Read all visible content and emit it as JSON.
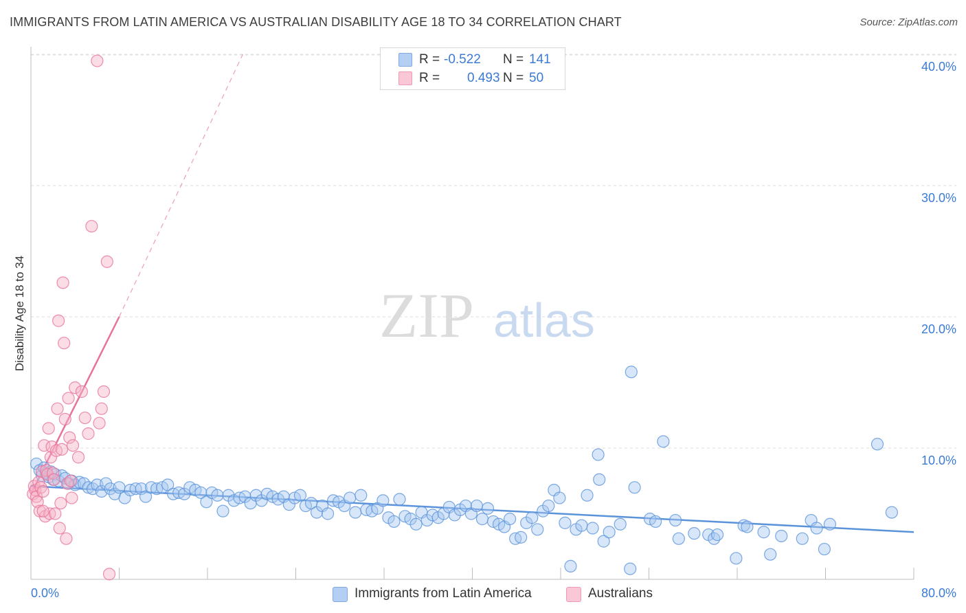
{
  "header": {
    "title": "IMMIGRANTS FROM LATIN AMERICA VS AUSTRALIAN DISABILITY AGE 18 TO 34 CORRELATION CHART",
    "source": "Source: ZipAtlas.com"
  },
  "watermark": {
    "zip": "ZIP",
    "atlas": "atlas"
  },
  "legend": {
    "r_label": "R =",
    "n_label": "N =",
    "rows": [
      {
        "r": "-0.522",
        "n": "141",
        "color": "#9dc1ee"
      },
      {
        "r": "0.493",
        "n": "50",
        "color": "#f6b3c6"
      }
    ]
  },
  "bottom_legend": [
    {
      "label": "Immigrants from Latin America",
      "color": "#9dc1ee"
    },
    {
      "label": "Australians",
      "color": "#f6b3c6"
    }
  ],
  "chart_data": {
    "type": "scatter",
    "title": "IMMIGRANTS FROM LATIN AMERICA VS AUSTRALIAN DISABILITY AGE 18 TO 34 CORRELATION CHART",
    "xlabel": "",
    "ylabel": "Disability Age 18 to 34",
    "xlim": [
      0,
      80
    ],
    "ylim": [
      0,
      41.5
    ],
    "x_tick_labels": [
      "0.0%",
      "80.0%"
    ],
    "y_ticks": [
      10,
      20,
      30,
      40
    ],
    "y_tick_labels": [
      "10.0%",
      "20.0%",
      "30.0%",
      "40.0%"
    ],
    "grid": true,
    "legend_position": "top-center",
    "series": [
      {
        "name": "Immigrants from Latin America",
        "color": "#5b93db",
        "fill": "#a7c7ef",
        "trend": {
          "x": [
            0,
            80
          ],
          "y": [
            7.1,
            3.6
          ],
          "dashed_extension": false
        },
        "points": [
          [
            0.5,
            8.8
          ],
          [
            0.8,
            8.3
          ],
          [
            1.0,
            7.9
          ],
          [
            1.2,
            8.5
          ],
          [
            1.4,
            8.1
          ],
          [
            1.6,
            7.8
          ],
          [
            1.8,
            8.2
          ],
          [
            2.0,
            7.6
          ],
          [
            2.2,
            8.0
          ],
          [
            2.5,
            7.5
          ],
          [
            2.8,
            7.9
          ],
          [
            3.1,
            7.7
          ],
          [
            3.4,
            7.3
          ],
          [
            3.7,
            7.5
          ],
          [
            4.0,
            7.2
          ],
          [
            4.4,
            7.4
          ],
          [
            4.8,
            7.3
          ],
          [
            5.2,
            7.0
          ],
          [
            5.6,
            6.9
          ],
          [
            6.0,
            7.2
          ],
          [
            6.4,
            6.7
          ],
          [
            6.8,
            7.3
          ],
          [
            7.2,
            6.9
          ],
          [
            7.6,
            6.5
          ],
          [
            8.0,
            7.0
          ],
          [
            8.5,
            6.2
          ],
          [
            9.0,
            6.8
          ],
          [
            9.5,
            6.9
          ],
          [
            10.0,
            6.9
          ],
          [
            10.4,
            6.3
          ],
          [
            10.9,
            7.0
          ],
          [
            11.4,
            6.9
          ],
          [
            11.9,
            7.0
          ],
          [
            12.4,
            7.2
          ],
          [
            12.9,
            6.5
          ],
          [
            13.4,
            6.6
          ],
          [
            13.9,
            6.5
          ],
          [
            14.4,
            7.0
          ],
          [
            14.9,
            6.8
          ],
          [
            15.4,
            6.6
          ],
          [
            15.9,
            5.9
          ],
          [
            16.4,
            6.6
          ],
          [
            16.9,
            6.4
          ],
          [
            17.4,
            5.2
          ],
          [
            17.9,
            6.4
          ],
          [
            18.4,
            6.0
          ],
          [
            18.9,
            6.2
          ],
          [
            19.4,
            6.3
          ],
          [
            19.9,
            5.8
          ],
          [
            20.4,
            6.4
          ],
          [
            20.9,
            6.0
          ],
          [
            21.4,
            6.5
          ],
          [
            21.9,
            6.3
          ],
          [
            22.4,
            6.1
          ],
          [
            22.9,
            6.3
          ],
          [
            23.4,
            5.7
          ],
          [
            23.9,
            6.2
          ],
          [
            24.4,
            6.4
          ],
          [
            24.9,
            5.6
          ],
          [
            25.4,
            5.8
          ],
          [
            25.9,
            5.1
          ],
          [
            26.4,
            5.6
          ],
          [
            26.9,
            5.0
          ],
          [
            27.4,
            6.0
          ],
          [
            27.9,
            5.9
          ],
          [
            28.4,
            5.6
          ],
          [
            28.9,
            6.2
          ],
          [
            29.4,
            5.1
          ],
          [
            29.9,
            6.4
          ],
          [
            30.4,
            5.3
          ],
          [
            30.9,
            5.2
          ],
          [
            31.4,
            5.4
          ],
          [
            31.9,
            6.0
          ],
          [
            32.4,
            4.7
          ],
          [
            32.9,
            4.4
          ],
          [
            33.4,
            6.1
          ],
          [
            33.9,
            4.8
          ],
          [
            34.4,
            4.6
          ],
          [
            34.9,
            4.2
          ],
          [
            35.4,
            5.1
          ],
          [
            35.9,
            4.5
          ],
          [
            36.4,
            4.9
          ],
          [
            36.9,
            4.7
          ],
          [
            37.4,
            5.0
          ],
          [
            37.9,
            5.5
          ],
          [
            38.4,
            4.9
          ],
          [
            38.9,
            5.3
          ],
          [
            39.4,
            5.6
          ],
          [
            39.9,
            5.0
          ],
          [
            40.4,
            5.6
          ],
          [
            40.9,
            4.6
          ],
          [
            41.4,
            5.4
          ],
          [
            41.9,
            4.4
          ],
          [
            42.4,
            4.2
          ],
          [
            42.9,
            4.0
          ],
          [
            43.4,
            4.6
          ],
          [
            43.9,
            3.1
          ],
          [
            44.4,
            3.2
          ],
          [
            44.9,
            4.3
          ],
          [
            45.4,
            4.7
          ],
          [
            45.9,
            3.8
          ],
          [
            46.4,
            5.2
          ],
          [
            46.9,
            5.6
          ],
          [
            47.4,
            6.8
          ],
          [
            47.9,
            6.2
          ],
          [
            48.4,
            4.3
          ],
          [
            48.9,
            1.0
          ],
          [
            49.4,
            3.8
          ],
          [
            49.9,
            4.1
          ],
          [
            50.4,
            6.4
          ],
          [
            50.9,
            3.9
          ],
          [
            51.4,
            9.5
          ],
          [
            51.5,
            7.6
          ],
          [
            51.9,
            2.9
          ],
          [
            52.4,
            3.6
          ],
          [
            53.4,
            4.2
          ],
          [
            54.3,
            0.8
          ],
          [
            54.4,
            15.8
          ],
          [
            54.7,
            7.0
          ],
          [
            56.1,
            4.6
          ],
          [
            56.6,
            4.4
          ],
          [
            57.3,
            10.5
          ],
          [
            58.4,
            4.5
          ],
          [
            58.7,
            3.1
          ],
          [
            60.1,
            3.5
          ],
          [
            61.4,
            3.4
          ],
          [
            61.9,
            3.1
          ],
          [
            62.2,
            3.4
          ],
          [
            63.9,
            1.6
          ],
          [
            64.6,
            4.1
          ],
          [
            64.9,
            4.0
          ],
          [
            66.4,
            3.6
          ],
          [
            67.0,
            1.9
          ],
          [
            68.0,
            3.3
          ],
          [
            69.9,
            3.1
          ],
          [
            70.7,
            4.5
          ],
          [
            71.2,
            3.9
          ],
          [
            71.9,
            2.3
          ],
          [
            72.4,
            4.2
          ],
          [
            76.7,
            10.3
          ],
          [
            78.0,
            5.1
          ]
        ]
      },
      {
        "name": "Australians",
        "color": "#e7729c",
        "fill": "#f6b3c6",
        "trend": {
          "x": [
            0,
            8
          ],
          "y": [
            6.5,
            20.0
          ],
          "dashed_extension": true,
          "extension_to": [
            19.2,
            40.0
          ]
        },
        "points": [
          [
            0.2,
            6.5
          ],
          [
            0.3,
            7.1
          ],
          [
            0.4,
            6.8
          ],
          [
            0.5,
            6.3
          ],
          [
            0.6,
            5.9
          ],
          [
            0.7,
            7.4
          ],
          [
            0.8,
            5.2
          ],
          [
            0.9,
            7.0
          ],
          [
            1.0,
            8.2
          ],
          [
            1.1,
            6.7
          ],
          [
            1.2,
            10.2
          ],
          [
            1.3,
            4.8
          ],
          [
            1.4,
            8.3
          ],
          [
            1.5,
            8.0
          ],
          [
            1.6,
            11.5
          ],
          [
            1.7,
            5.0
          ],
          [
            1.8,
            9.3
          ],
          [
            1.9,
            10.1
          ],
          [
            2.0,
            8.1
          ],
          [
            2.1,
            7.6
          ],
          [
            2.2,
            5.0
          ],
          [
            2.3,
            9.8
          ],
          [
            2.4,
            13.0
          ],
          [
            2.5,
            19.7
          ],
          [
            2.6,
            3.9
          ],
          [
            2.7,
            5.8
          ],
          [
            2.8,
            9.9
          ],
          [
            2.9,
            22.6
          ],
          [
            3.0,
            18.0
          ],
          [
            3.1,
            12.2
          ],
          [
            3.2,
            3.1
          ],
          [
            3.3,
            7.3
          ],
          [
            3.4,
            13.8
          ],
          [
            3.5,
            10.8
          ],
          [
            3.6,
            7.5
          ],
          [
            3.8,
            10.2
          ],
          [
            4.0,
            14.6
          ],
          [
            4.3,
            9.3
          ],
          [
            4.6,
            14.3
          ],
          [
            4.9,
            12.3
          ],
          [
            5.2,
            11.1
          ],
          [
            5.5,
            26.9
          ],
          [
            6.0,
            39.5
          ],
          [
            6.2,
            11.9
          ],
          [
            6.4,
            13.0
          ],
          [
            6.6,
            14.3
          ],
          [
            6.9,
            24.2
          ],
          [
            7.1,
            0.4
          ],
          [
            3.7,
            6.2
          ],
          [
            1.1,
            5.2
          ]
        ]
      }
    ]
  }
}
